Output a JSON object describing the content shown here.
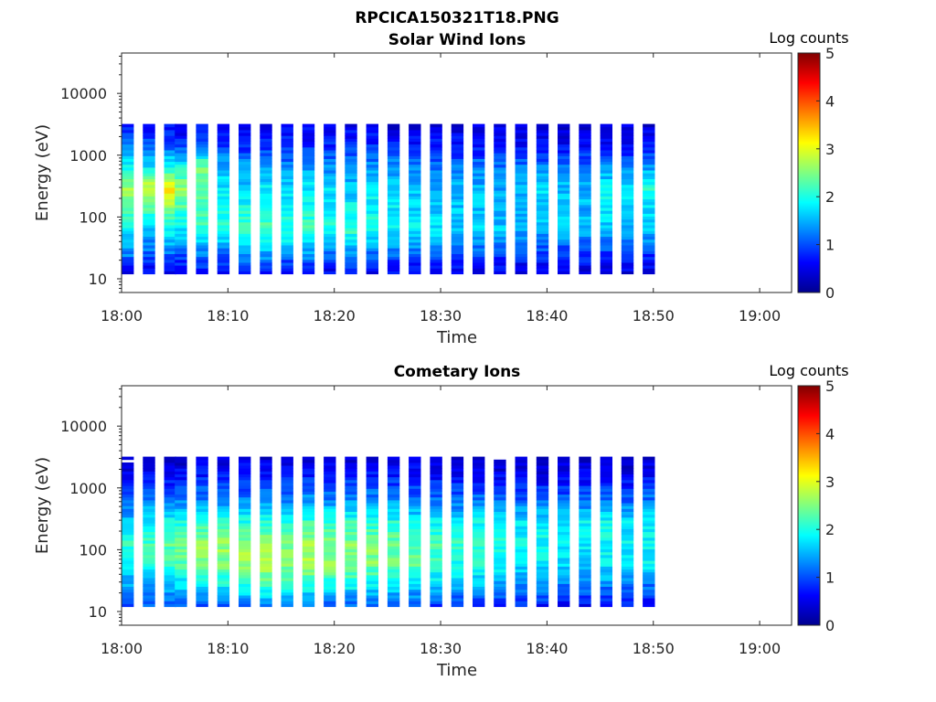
{
  "figure": {
    "title": "RPCICA150321T18.PNG"
  },
  "colorbar": {
    "label": "Log counts",
    "range": [
      0,
      5
    ],
    "ticks": [
      "0",
      "1",
      "2",
      "3",
      "4",
      "5"
    ],
    "colormap": [
      "#00008f",
      "#0000ff",
      "#0080ff",
      "#00ffff",
      "#80ff80",
      "#ffff00",
      "#ff8000",
      "#ff0000",
      "#800000"
    ]
  },
  "chart_data": [
    {
      "type": "heatmap",
      "title": "Solar Wind Ions",
      "xlabel": "Time",
      "ylabel": "Energy (eV)",
      "y_scale": "log",
      "xlim": [
        "18:00",
        "19:03"
      ],
      "ylim": [
        6,
        45000
      ],
      "x_ticks": [
        "18:00",
        "18:10",
        "18:20",
        "18:30",
        "18:40",
        "18:50",
        "19:00"
      ],
      "y_ticks": [
        "10",
        "100",
        "1000",
        "10000"
      ],
      "scans": [
        {
          "t": "18:00",
          "profile": [
            0.6,
            1.3,
            1.7,
            2.3,
            2.6,
            1.9,
            1.3,
            0.7
          ]
        },
        {
          "t": "18:02",
          "profile": [
            0.5,
            1.1,
            1.6,
            2.2,
            2.9,
            1.8,
            1.2,
            0.6
          ]
        },
        {
          "t": "18:04",
          "profile": [
            0.6,
            1.2,
            1.8,
            2.4,
            3.3,
            2.0,
            1.0,
            0.6
          ]
        },
        {
          "t": "18:05",
          "profile": [
            0.5,
            1.1,
            1.7,
            2.2,
            2.6,
            1.9,
            0.9,
            0.5
          ]
        },
        {
          "t": "18:07",
          "profile": [
            0.6,
            1.3,
            2.0,
            2.3,
            2.2,
            2.5,
            1.1,
            0.6
          ]
        },
        {
          "t": "18:09",
          "profile": [
            0.5,
            1.2,
            1.9,
            2.1,
            1.8,
            1.5,
            0.9,
            0.5
          ]
        },
        {
          "t": "18:11",
          "profile": [
            0.6,
            1.4,
            2.2,
            2.0,
            1.7,
            1.4,
            0.8,
            0.5
          ]
        },
        {
          "t": "18:13",
          "profile": [
            0.7,
            1.5,
            2.3,
            2.1,
            1.8,
            1.3,
            0.8,
            0.5
          ]
        },
        {
          "t": "18:15",
          "profile": [
            0.6,
            1.3,
            2.1,
            1.9,
            1.7,
            1.3,
            0.8,
            0.5
          ]
        },
        {
          "t": "18:17",
          "profile": [
            0.6,
            1.4,
            2.2,
            2.0,
            1.8,
            1.4,
            0.8,
            0.5
          ]
        },
        {
          "t": "18:19",
          "profile": [
            0.5,
            1.2,
            2.0,
            1.9,
            1.7,
            1.3,
            0.8,
            0.5
          ]
        },
        {
          "t": "18:21",
          "profile": [
            0.6,
            1.3,
            2.1,
            1.9,
            1.6,
            1.4,
            0.8,
            0.5
          ]
        },
        {
          "t": "18:23",
          "profile": [
            0.5,
            1.2,
            2.0,
            1.9,
            1.7,
            1.4,
            0.8,
            0.5
          ]
        },
        {
          "t": "18:25",
          "profile": [
            0.5,
            1.2,
            1.8,
            1.8,
            1.6,
            1.4,
            0.7,
            0.4
          ]
        },
        {
          "t": "18:27",
          "profile": [
            0.5,
            1.1,
            1.8,
            1.7,
            1.6,
            1.3,
            0.7,
            0.4
          ]
        },
        {
          "t": "18:29",
          "profile": [
            0.5,
            1.1,
            1.7,
            1.6,
            1.5,
            1.2,
            0.7,
            0.4
          ]
        },
        {
          "t": "18:31",
          "profile": [
            0.4,
            1.0,
            1.6,
            1.6,
            1.5,
            1.2,
            0.7,
            0.4
          ]
        },
        {
          "t": "18:33",
          "profile": [
            0.4,
            1.0,
            1.7,
            1.6,
            1.5,
            1.3,
            0.6,
            0.4
          ]
        },
        {
          "t": "18:35",
          "profile": [
            0.4,
            1.0,
            1.6,
            1.5,
            1.4,
            1.2,
            0.6,
            0.4
          ]
        },
        {
          "t": "18:37",
          "profile": [
            0.4,
            0.9,
            1.5,
            1.5,
            1.6,
            1.2,
            0.6,
            0.4
          ]
        },
        {
          "t": "18:39",
          "profile": [
            0.4,
            0.9,
            1.5,
            1.6,
            1.7,
            1.3,
            0.6,
            0.4
          ]
        },
        {
          "t": "18:41",
          "profile": [
            0.4,
            0.9,
            1.6,
            1.6,
            1.6,
            1.2,
            0.6,
            0.4
          ]
        },
        {
          "t": "18:43",
          "profile": [
            0.4,
            0.9,
            1.5,
            1.5,
            1.5,
            1.2,
            0.6,
            0.4
          ]
        },
        {
          "t": "18:45",
          "profile": [
            0.4,
            0.9,
            1.6,
            1.7,
            1.9,
            1.3,
            0.6,
            0.4
          ]
        },
        {
          "t": "18:47",
          "profile": [
            0.4,
            0.9,
            1.5,
            1.6,
            1.8,
            1.2,
            0.6,
            0.4
          ]
        },
        {
          "t": "18:49",
          "profile": [
            0.4,
            0.9,
            1.6,
            1.7,
            2.0,
            1.4,
            0.7,
            0.4
          ]
        }
      ]
    },
    {
      "type": "heatmap",
      "title": "Cometary Ions",
      "xlabel": "Time",
      "ylabel": "Energy (eV)",
      "y_scale": "log",
      "xlim": [
        "18:00",
        "19:03"
      ],
      "ylim": [
        6,
        45000
      ],
      "x_ticks": [
        "18:00",
        "18:10",
        "18:20",
        "18:30",
        "18:40",
        "18:50",
        "19:00"
      ],
      "y_ticks": [
        "10",
        "100",
        "1000",
        "10000"
      ],
      "scans": [
        {
          "t": "18:00",
          "profile": [
            1.0,
            1.4,
            1.9,
            2.1,
            1.6,
            1.0,
            0.6,
            0.3
          ]
        },
        {
          "t": "18:02",
          "profile": [
            1.0,
            1.5,
            2.0,
            2.2,
            1.8,
            1.2,
            0.7,
            0.3
          ]
        },
        {
          "t": "18:04",
          "profile": [
            1.1,
            1.6,
            2.2,
            2.3,
            1.9,
            1.1,
            0.7,
            0.3
          ]
        },
        {
          "t": "18:05",
          "profile": [
            1.1,
            1.7,
            2.3,
            2.4,
            2.0,
            1.2,
            0.7,
            0.3
          ]
        },
        {
          "t": "18:07",
          "profile": [
            1.0,
            1.8,
            2.4,
            2.6,
            2.1,
            1.3,
            0.8,
            0.4
          ]
        },
        {
          "t": "18:09",
          "profile": [
            1.1,
            1.9,
            2.5,
            2.6,
            2.1,
            1.3,
            0.8,
            0.4
          ]
        },
        {
          "t": "18:11",
          "profile": [
            1.2,
            2.0,
            2.7,
            2.5,
            2.0,
            1.3,
            0.8,
            0.4
          ]
        },
        {
          "t": "18:13",
          "profile": [
            1.2,
            2.1,
            2.8,
            2.6,
            2.1,
            1.4,
            0.8,
            0.4
          ]
        },
        {
          "t": "18:15",
          "profile": [
            1.1,
            2.0,
            2.6,
            2.5,
            2.0,
            1.3,
            0.8,
            0.4
          ]
        },
        {
          "t": "18:17",
          "profile": [
            1.1,
            2.0,
            2.7,
            2.6,
            2.1,
            1.4,
            0.8,
            0.4
          ]
        },
        {
          "t": "18:19",
          "profile": [
            1.0,
            1.9,
            2.6,
            2.5,
            2.0,
            1.3,
            0.8,
            0.4
          ]
        },
        {
          "t": "18:21",
          "profile": [
            1.0,
            1.9,
            2.6,
            2.5,
            2.1,
            1.3,
            0.8,
            0.4
          ]
        },
        {
          "t": "18:23",
          "profile": [
            1.0,
            1.8,
            2.5,
            2.5,
            2.0,
            1.3,
            0.8,
            0.4
          ]
        },
        {
          "t": "18:25",
          "profile": [
            0.9,
            1.8,
            2.4,
            2.4,
            2.0,
            1.3,
            0.8,
            0.4
          ]
        },
        {
          "t": "18:27",
          "profile": [
            0.9,
            1.7,
            2.4,
            2.3,
            1.9,
            1.2,
            0.7,
            0.4
          ]
        },
        {
          "t": "18:29",
          "profile": [
            0.9,
            1.6,
            2.2,
            2.2,
            1.9,
            1.2,
            0.7,
            0.4
          ]
        },
        {
          "t": "18:31",
          "profile": [
            0.8,
            1.5,
            2.0,
            2.1,
            1.8,
            1.1,
            0.7,
            0.3
          ]
        },
        {
          "t": "18:33",
          "profile": [
            0.8,
            1.5,
            2.0,
            2.1,
            1.9,
            1.2,
            0.7,
            0.3
          ]
        },
        {
          "t": "18:35",
          "profile": [
            0.7,
            1.4,
            1.9,
            2.0,
            1.8,
            1.1,
            0.6,
            0.3
          ]
        },
        {
          "t": "18:37",
          "profile": [
            0.7,
            1.3,
            1.8,
            1.9,
            1.7,
            1.1,
            0.6,
            0.3
          ]
        },
        {
          "t": "18:39",
          "profile": [
            0.7,
            1.3,
            1.8,
            1.9,
            1.8,
            1.1,
            0.6,
            0.3
          ]
        },
        {
          "t": "18:41",
          "profile": [
            0.6,
            1.2,
            1.7,
            1.8,
            1.7,
            1.1,
            0.6,
            0.3
          ]
        },
        {
          "t": "18:43",
          "profile": [
            0.6,
            1.2,
            1.7,
            1.8,
            1.8,
            1.1,
            0.6,
            0.3
          ]
        },
        {
          "t": "18:45",
          "profile": [
            0.6,
            1.3,
            1.8,
            1.9,
            1.9,
            1.2,
            0.6,
            0.3
          ]
        },
        {
          "t": "18:47",
          "profile": [
            0.6,
            1.2,
            1.7,
            1.8,
            1.8,
            1.1,
            0.6,
            0.3
          ]
        },
        {
          "t": "18:49",
          "profile": [
            0.6,
            1.2,
            1.8,
            1.9,
            1.9,
            1.2,
            0.7,
            0.3
          ]
        }
      ]
    }
  ]
}
